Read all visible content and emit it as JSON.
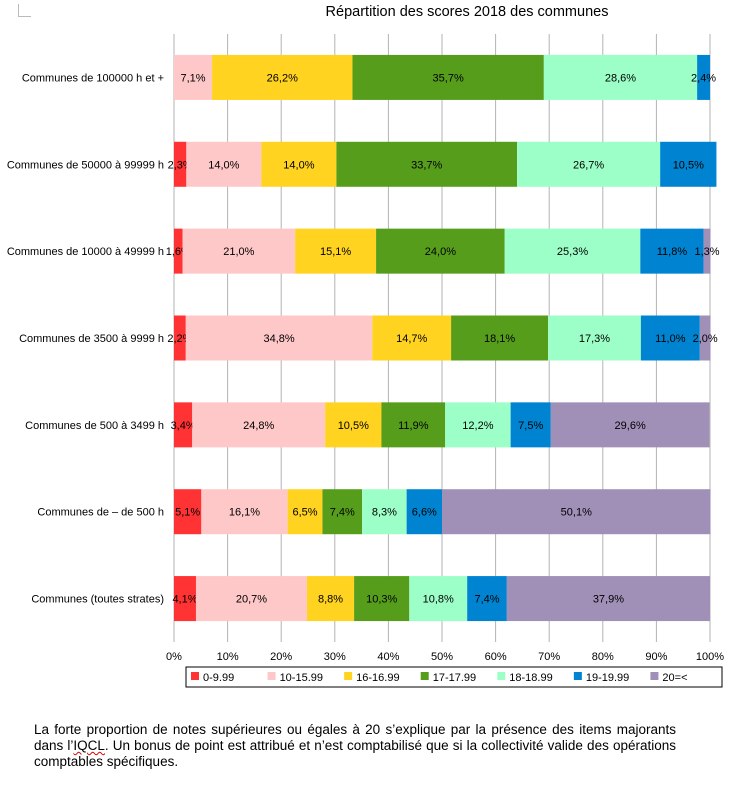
{
  "chart_data": {
    "type": "bar",
    "orientation": "horizontal",
    "stacked": "percent",
    "title": "Répartition des scores 2018 des communes",
    "categories": [
      "Communes de 100000 h et +",
      "Communes de 50000 à 99999 h",
      "Communes de 10000 à 49999 h",
      "Communes de 3500 à 9999 h",
      "Communes de 500 à 3499 h",
      "Communes de – de 500 h",
      "Communes (toutes strates)"
    ],
    "series": [
      {
        "name": "0-9.99",
        "color": "#ff3333",
        "values": [
          0,
          2.3,
          1.6,
          2.2,
          3.4,
          5.1,
          4.1
        ]
      },
      {
        "name": "10-15.99",
        "color": "#ffc8c8",
        "values": [
          7.1,
          14.0,
          21.0,
          34.8,
          24.8,
          16.1,
          20.7
        ]
      },
      {
        "name": "16-16.99",
        "color": "#ffd320",
        "values": [
          26.2,
          14.0,
          15.1,
          14.7,
          10.5,
          6.5,
          8.8
        ]
      },
      {
        "name": "17-17.99",
        "color": "#579d1c",
        "values": [
          35.7,
          33.7,
          24.0,
          18.1,
          11.9,
          7.4,
          10.3
        ]
      },
      {
        "name": "18-18.99",
        "color": "#9dffc8",
        "values": [
          28.6,
          26.7,
          25.3,
          17.3,
          12.2,
          8.3,
          10.8
        ]
      },
      {
        "name": "19-19.99",
        "color": "#0084d1",
        "values": [
          2.4,
          10.5,
          11.8,
          11.0,
          7.5,
          6.6,
          7.4
        ]
      },
      {
        "name": "20=<",
        "color": "#a090b8",
        "values": [
          0,
          0,
          1.3,
          2.0,
          29.6,
          50.1,
          37.9
        ]
      }
    ],
    "labels": [
      [
        "",
        "7,1%",
        "26,2%",
        "35,7%",
        "28,6%",
        "2,4%",
        ""
      ],
      [
        "2,3%",
        "14,0%",
        "14,0%",
        "33,7%",
        "26,7%",
        "10,5%",
        ""
      ],
      [
        "1,6%",
        "21,0%",
        "15,1%",
        "24,0%",
        "25,3%",
        "11,8%",
        "1,3%"
      ],
      [
        "2,2%",
        "34,8%",
        "14,7%",
        "18,1%",
        "17,3%",
        "11,0%",
        "2,0%"
      ],
      [
        "3,4%",
        "24,8%",
        "10,5%",
        "11,9%",
        "12,2%",
        "7,5%",
        "29,6%"
      ],
      [
        "5,1%",
        "16,1%",
        "6,5%",
        "7,4%",
        "8,3%",
        "6,6%",
        "50,1%"
      ],
      [
        "4,1%",
        "20,7%",
        "8,8%",
        "10,3%",
        "10,8%",
        "7,4%",
        "37,9%"
      ]
    ],
    "xlim": [
      0,
      100
    ],
    "xticks": [
      "0%",
      "10%",
      "20%",
      "30%",
      "40%",
      "50%",
      "60%",
      "70%",
      "80%",
      "90%",
      "100%"
    ],
    "grid": "vertical",
    "legend_position": "bottom"
  },
  "caption": {
    "before": "La forte proportion de notes supérieures ou égales à 20 s’explique par la présence des items majorants dans l’",
    "marked": "IQCL",
    "after": ". Un bonus de point est attribué et n’est comptabilisé que si la collectivité valide des opérations comptables spécifiques."
  }
}
